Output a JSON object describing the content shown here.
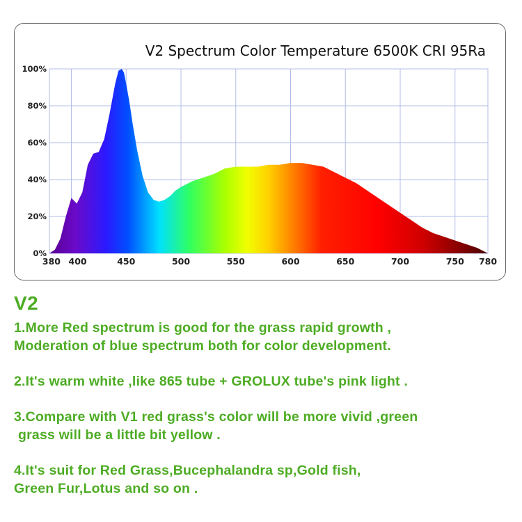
{
  "chart_data": {
    "type": "area",
    "title": "V2 Spectrum Color Temperature 6500K CRI 95Ra",
    "xlabel": "",
    "ylabel": "",
    "xlim": [
      380,
      780
    ],
    "ylim": [
      0,
      100
    ],
    "x_tick_labels": [
      "380",
      "400",
      "450",
      "500",
      "550",
      "600",
      "650",
      "700",
      "750",
      "780"
    ],
    "x_tick_values": [
      380,
      400,
      450,
      500,
      550,
      600,
      650,
      700,
      750,
      780
    ],
    "y_tick_labels": [
      "0%",
      "20%",
      "40%",
      "60%",
      "80%",
      "100%"
    ],
    "y_tick_values": [
      0,
      20,
      40,
      60,
      80,
      100
    ],
    "grid": true,
    "fill": "visible-spectrum rainbow",
    "series": [
      {
        "x": [
          380,
          385,
          390,
          395,
          400,
          405,
          410,
          415,
          420,
          425,
          430,
          435,
          440,
          443,
          446,
          448,
          450,
          453,
          456,
          460,
          465,
          470,
          475,
          480,
          485,
          490,
          495,
          500,
          510,
          520,
          530,
          540,
          550,
          560,
          570,
          580,
          590,
          600,
          610,
          620,
          630,
          640,
          650,
          660,
          670,
          680,
          690,
          700,
          710,
          720,
          730,
          740,
          750,
          760,
          770,
          780
        ],
        "y": [
          0,
          2,
          8,
          20,
          30,
          27,
          33,
          48,
          54,
          55,
          62,
          76,
          92,
          99,
          100,
          98,
          92,
          82,
          70,
          56,
          42,
          33,
          29,
          28,
          29,
          31,
          34,
          36,
          39,
          41,
          43,
          46,
          47,
          47,
          47,
          48,
          48,
          49,
          49,
          48,
          47,
          44,
          41,
          38,
          34,
          30,
          26,
          22,
          18,
          14,
          11,
          9,
          7,
          5,
          3,
          0
        ]
      }
    ]
  },
  "notes": {
    "heading": "V2",
    "items": [
      {
        "lines": [
          "1.More Red spectrum is good for the grass rapid growth ,",
          "Moderation of blue spectrum both for color development."
        ]
      },
      {
        "lines": [
          "2.It's warm white ,like 865 tube + GROLUX tube's pink light ."
        ]
      },
      {
        "lines": [
          "3.Compare with V1 red grass's color will be more vivid ,green",
          "grass will be a little bit yellow ."
        ]
      },
      {
        "lines": [
          "4.It's suit for Red Grass,Bucephalandra sp,Gold fish,",
          "Green Fur,Lotus and so on ."
        ]
      }
    ]
  },
  "colors": {
    "text_green": "#4dac23",
    "frame_border": "#666666",
    "grid_line": "#b3bde8"
  }
}
